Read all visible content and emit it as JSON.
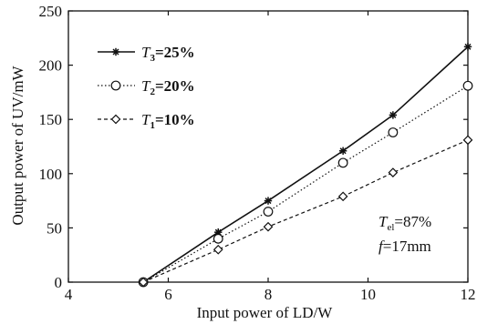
{
  "chart_data": {
    "type": "line",
    "xlabel": "Input power of LD/W",
    "ylabel": "Output power of UV/mW",
    "xlim": [
      4,
      12
    ],
    "ylim": [
      0,
      250
    ],
    "xticks": [
      4,
      6,
      8,
      10,
      12
    ],
    "yticks": [
      0,
      50,
      100,
      150,
      200,
      250
    ],
    "grid": false,
    "legend_position": "top-left",
    "series": [
      {
        "name_var": "T",
        "name_sub": "3",
        "name_value": "=25%",
        "marker": "star",
        "line": "solid",
        "x": [
          5.5,
          7,
          8,
          9.5,
          10.5,
          12
        ],
        "y": [
          0,
          46,
          75,
          121,
          154,
          217
        ]
      },
      {
        "name_var": "T",
        "name_sub": "2",
        "name_value": "=20%",
        "marker": "circle",
        "line": "dotted",
        "x": [
          5.5,
          7,
          8,
          9.5,
          10.5,
          12
        ],
        "y": [
          0,
          40,
          65,
          110,
          138,
          181
        ]
      },
      {
        "name_var": "T",
        "name_sub": "1",
        "name_value": "=10%",
        "marker": "diamond",
        "line": "dashed",
        "x": [
          5.5,
          7,
          8,
          9.5,
          10.5,
          12
        ],
        "y": [
          0,
          30,
          51,
          79,
          101,
          131
        ]
      }
    ],
    "annotation": {
      "line1_var": "T",
      "line1_sub": "el",
      "line1_value": "=87%",
      "line2_var": "f",
      "line2_value": "=17mm"
    }
  }
}
